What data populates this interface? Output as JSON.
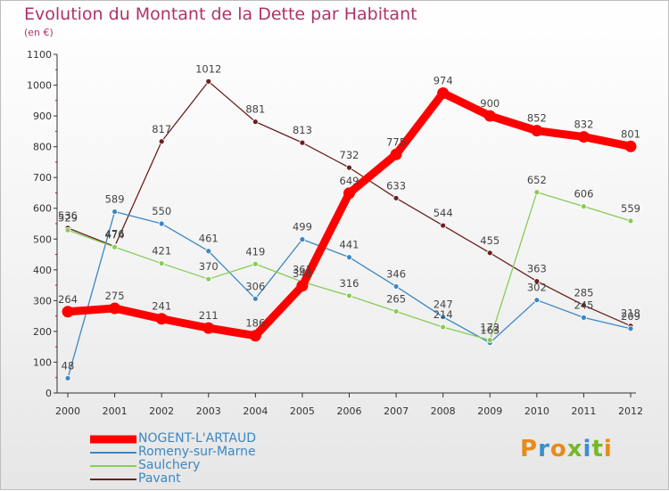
{
  "title": "Evolution du Montant de la Dette par Habitant",
  "subtitle": "(en €)",
  "logo_text": "Proxiti",
  "chart_data": {
    "type": "line",
    "title": "Evolution du Montant de la Dette par Habitant",
    "ylabel": "(en €)",
    "xlabel": "",
    "x": [
      "2000",
      "2001",
      "2002",
      "2003",
      "2004",
      "2005",
      "2006",
      "2007",
      "2008",
      "2009",
      "2010",
      "2011",
      "2012"
    ],
    "ylim": [
      0,
      1100
    ],
    "yticks": [
      0,
      100,
      200,
      300,
      400,
      500,
      600,
      700,
      800,
      900,
      1000,
      1100
    ],
    "grid": false,
    "legend_position": "bottom-left",
    "series": [
      {
        "name": "NOGENT-L'ARTAUD",
        "color": "#ff0000",
        "values": [
          264,
          275,
          241,
          211,
          186,
          348,
          649,
          775,
          974,
          900,
          852,
          832,
          801
        ]
      },
      {
        "name": "Romeny-sur-Marne",
        "color": "#3b87c4",
        "values": [
          48,
          589,
          550,
          461,
          306,
          499,
          441,
          346,
          247,
          163,
          302,
          245,
          209
        ]
      },
      {
        "name": "Saulchery",
        "color": "#88cc55",
        "values": [
          529,
          474,
          421,
          370,
          419,
          361,
          316,
          265,
          214,
          172,
          652,
          606,
          559
        ]
      },
      {
        "name": "Pavant",
        "color": "#6b1f1f",
        "values": [
          536,
          476,
          817,
          1012,
          881,
          813,
          732,
          633,
          544,
          455,
          363,
          285,
          218
        ]
      }
    ]
  }
}
